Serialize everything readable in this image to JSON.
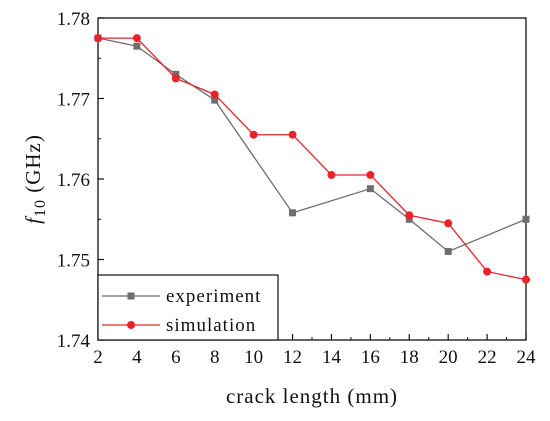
{
  "chart_data": {
    "type": "line",
    "title": "",
    "xlabel": "crack length (mm)",
    "ylabel": {
      "symbol": "f",
      "subscript": "10",
      "unit": " (GHz)"
    },
    "xlim": [
      2,
      24
    ],
    "ylim": [
      1.74,
      1.78
    ],
    "x_ticks": [
      2,
      4,
      6,
      8,
      10,
      12,
      14,
      16,
      18,
      20,
      22,
      24
    ],
    "y_ticks": [
      "1.74",
      "1.75",
      "1.76",
      "1.77",
      "1.78"
    ],
    "grid": false,
    "legend_position": "bottom-left",
    "series": [
      {
        "name": "experiment",
        "color": "#6e6e6e",
        "marker": "square",
        "x": [
          2,
          4,
          6,
          8,
          12,
          16,
          18,
          20,
          24
        ],
        "y": [
          1.7775,
          1.7765,
          1.773,
          1.7698,
          1.7558,
          1.7588,
          1.755,
          1.751,
          1.755
        ]
      },
      {
        "name": "simulation",
        "color": "#e8232a",
        "marker": "circle",
        "x": [
          2,
          4,
          6,
          8,
          10,
          12,
          14,
          16,
          18,
          20,
          22,
          24
        ],
        "y": [
          1.7775,
          1.7775,
          1.7725,
          1.7705,
          1.7655,
          1.7655,
          1.7605,
          1.7605,
          1.7555,
          1.7545,
          1.7485,
          1.7475
        ]
      }
    ]
  }
}
